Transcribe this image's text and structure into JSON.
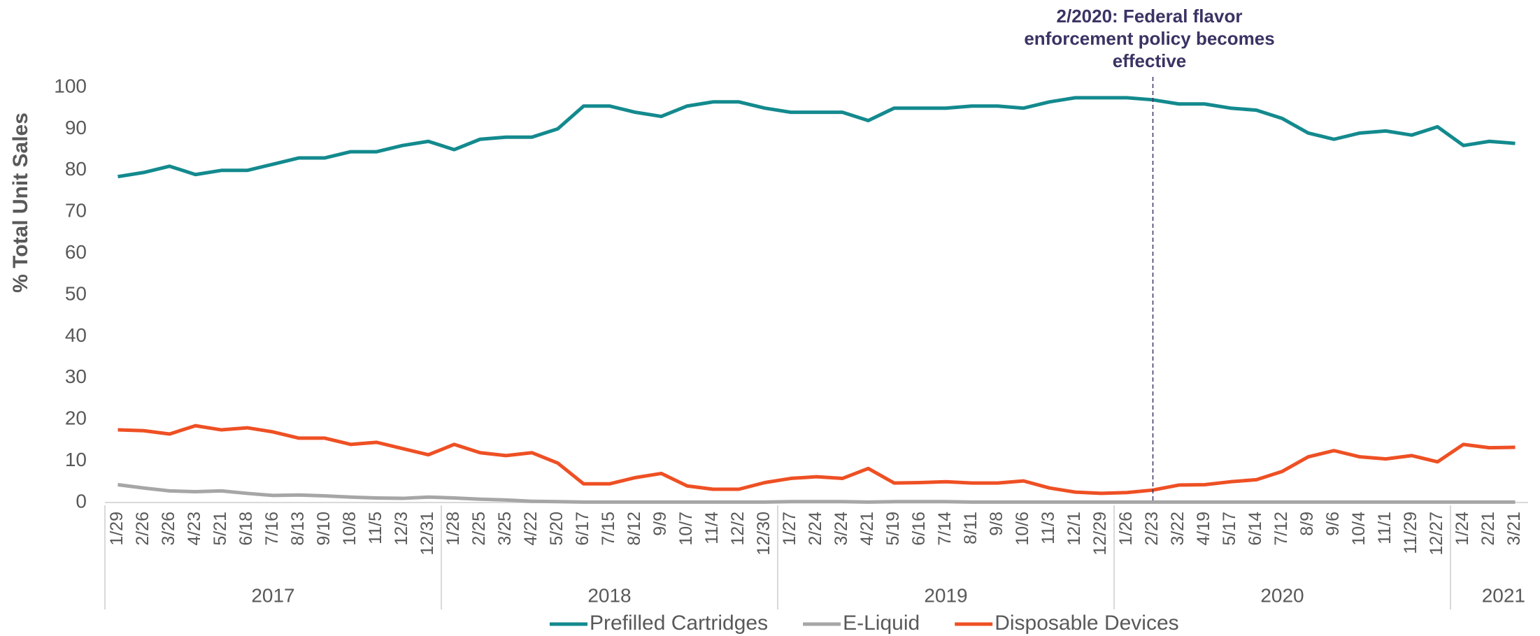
{
  "chart_data": {
    "type": "line",
    "y_label": "% Total Unit Sales",
    "ylim": [
      0,
      100
    ],
    "yticks": [
      0,
      10,
      20,
      30,
      40,
      50,
      60,
      70,
      80,
      90,
      100
    ],
    "category_groups": [
      {
        "label": "2017",
        "categories": [
          "1/29",
          "2/26",
          "3/26",
          "4/23",
          "5/21",
          "6/18",
          "7/16",
          "8/13",
          "9/10",
          "10/8",
          "11/5",
          "12/3",
          "12/31"
        ]
      },
      {
        "label": "2018",
        "categories": [
          "1/28",
          "2/25",
          "3/25",
          "4/22",
          "5/20",
          "6/17",
          "7/15",
          "8/12",
          "9/9",
          "10/7",
          "11/4",
          "12/2",
          "12/30"
        ]
      },
      {
        "label": "2019",
        "categories": [
          "1/27",
          "2/24",
          "3/24",
          "4/21",
          "5/19",
          "6/16",
          "7/14",
          "8/11",
          "9/8",
          "10/6",
          "11/3",
          "12/1",
          "12/29"
        ]
      },
      {
        "label": "2020",
        "categories": [
          "1/26",
          "2/23",
          "3/22",
          "4/19",
          "5/17",
          "6/14",
          "7/12",
          "8/9",
          "9/6",
          "10/4",
          "11/1",
          "11/29",
          "12/27"
        ]
      },
      {
        "label": "2021",
        "categories": [
          "1/24",
          "2/21",
          "3/21"
        ]
      }
    ],
    "series": [
      {
        "name": "Prefilled Cartridges",
        "color": "#138a8e",
        "values": [
          78.5,
          79.5,
          81,
          79,
          80,
          80,
          81.5,
          83,
          83,
          84.5,
          84.5,
          86,
          87,
          85,
          87.5,
          88,
          88,
          90,
          95.5,
          95.5,
          94,
          93,
          95.5,
          96.5,
          96.5,
          95,
          94,
          94,
          94,
          92,
          95,
          95,
          95,
          95.5,
          95.5,
          95,
          96.5,
          97.5,
          97.5,
          97.5,
          97,
          96,
          96,
          95,
          94.5,
          92.5,
          89,
          87.5,
          89,
          89.5,
          88.5,
          90.5,
          86,
          87,
          86.5
        ]
      },
      {
        "name": "E-Liquid",
        "color": "#a6a6a6",
        "values": [
          4.3,
          3.5,
          2.8,
          2.6,
          2.8,
          2.2,
          1.7,
          1.8,
          1.6,
          1.3,
          1.1,
          1.0,
          1.3,
          1.1,
          0.8,
          0.6,
          0.3,
          0.2,
          0.1,
          0.1,
          0.1,
          0.1,
          0.1,
          0.1,
          0.1,
          0.1,
          0.2,
          0.2,
          0.2,
          0.1,
          0.2,
          0.2,
          0.2,
          0.1,
          0.1,
          0.1,
          0.1,
          0.1,
          0.1,
          0.1,
          0.1,
          0.1,
          0.1,
          0.1,
          0.1,
          0.1,
          0.1,
          0.1,
          0.1,
          0.1,
          0.1,
          0.1,
          0.1,
          0.1,
          0.1
        ]
      },
      {
        "name": "Disposable Devices",
        "color": "#ee5024",
        "values": [
          17.5,
          17.3,
          16.5,
          18.5,
          17.5,
          18,
          17,
          15.5,
          15.5,
          14,
          14.5,
          13,
          11.5,
          14,
          12,
          11.3,
          12,
          9.5,
          4.5,
          4.5,
          6,
          7,
          4,
          3.2,
          3.2,
          4.8,
          5.8,
          6.2,
          5.8,
          8.2,
          4.7,
          4.8,
          5,
          4.7,
          4.7,
          5.2,
          3.5,
          2.5,
          2.2,
          2.4,
          3,
          4.2,
          4.3,
          5,
          5.5,
          7.5,
          11,
          12.5,
          11,
          10.5,
          11.3,
          9.8,
          14,
          13.2,
          13.3
        ]
      }
    ],
    "annotation": {
      "x": "2/23",
      "lines": [
        "2/2020: Federal flavor",
        "enforcement policy becomes",
        "effective"
      ],
      "color": "#3b3363"
    },
    "legend": "bottom"
  }
}
